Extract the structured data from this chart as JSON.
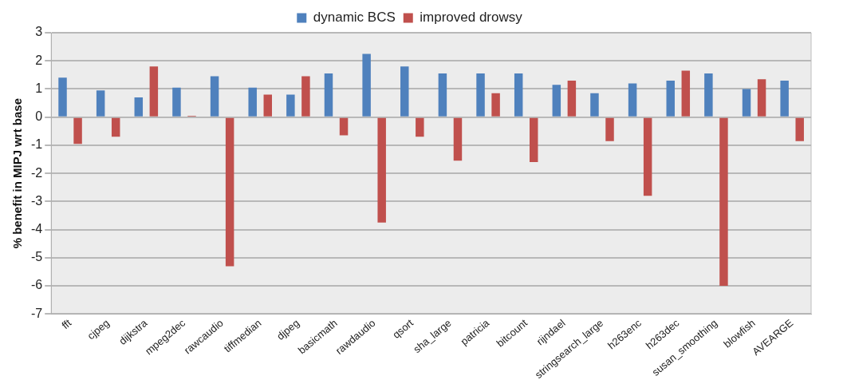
{
  "chart_data": {
    "type": "bar",
    "ylabel": "% benefit in MIPJ wrt base",
    "categories": [
      "fft",
      "cjpeg",
      "dijkstra",
      "mpeg2dec",
      "rawcaudio",
      "tiffmedian",
      "djpeg",
      "basicmath",
      "rawdaudio",
      "qsort",
      "sha_large",
      "patricia",
      "bitcount",
      "rijndael",
      "stringsearch_large",
      "h263enc",
      "h263dec",
      "susan_smoothing",
      "blowfish",
      "AVEARGE"
    ],
    "series": [
      {
        "name": "dynamic BCS",
        "color": "#4f81bd",
        "values": [
          1.4,
          0.95,
          0.7,
          1.05,
          1.45,
          1.05,
          0.8,
          1.55,
          2.25,
          1.8,
          1.55,
          1.55,
          1.55,
          1.15,
          0.85,
          1.2,
          1.3,
          1.55,
          1.0,
          1.3
        ]
      },
      {
        "name": "improved drowsy",
        "color": "#c0504d",
        "values": [
          -0.95,
          -0.7,
          1.8,
          0.05,
          -5.3,
          0.8,
          1.45,
          -0.65,
          -3.75,
          -0.7,
          -1.55,
          0.85,
          -1.6,
          1.3,
          -0.85,
          -2.8,
          1.65,
          -6.0,
          1.35,
          -0.85
        ]
      }
    ],
    "ylim": [
      -7,
      3
    ],
    "yticks": [
      -7,
      -6,
      -5,
      -4,
      -3,
      -2,
      -1,
      0,
      1,
      2,
      3
    ],
    "grid": "y",
    "legend": "top"
  }
}
